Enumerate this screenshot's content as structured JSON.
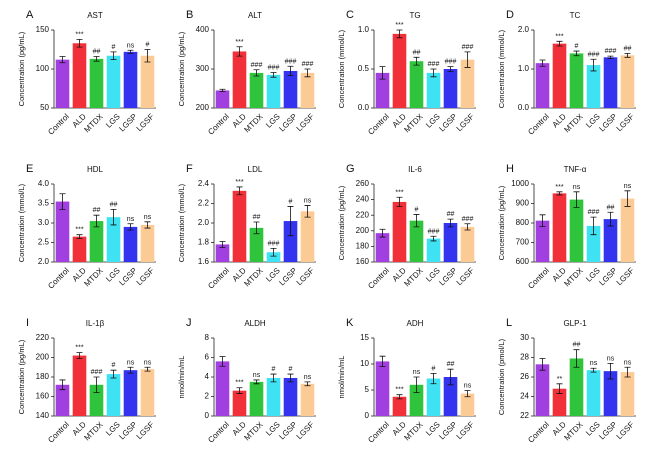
{
  "chart_data": [
    {
      "type": "bar",
      "panel": "A",
      "title": "AST",
      "ylabel": "Concentration (pg/mL)",
      "categories": [
        "Control",
        "ALD",
        "MTDX",
        "LGS",
        "LGSP",
        "LGSF"
      ],
      "colors": [
        "#a23fe0",
        "#f2303a",
        "#2fc43c",
        "#3fe2f2",
        "#3434f0",
        "#fcca94"
      ],
      "values": [
        112,
        133,
        113,
        117,
        122,
        117
      ],
      "errors": [
        4,
        5,
        3,
        5,
        2,
        8
      ],
      "annotations": [
        null,
        "***",
        "##",
        "#",
        "ns",
        "#"
      ],
      "ylim": [
        50,
        150
      ],
      "yticks": [
        50,
        100,
        150
      ]
    },
    {
      "type": "bar",
      "panel": "B",
      "title": "ALT",
      "ylabel": "Concentration (pg/mL)",
      "categories": [
        "Control",
        "ALD",
        "MTDX",
        "LGS",
        "LGSP",
        "LGSF"
      ],
      "colors": [
        "#a23fe0",
        "#f2303a",
        "#2fc43c",
        "#3fe2f2",
        "#3434f0",
        "#fcca94"
      ],
      "values": [
        245,
        345,
        290,
        285,
        295,
        290
      ],
      "errors": [
        3,
        12,
        8,
        6,
        12,
        10
      ],
      "annotations": [
        null,
        "***",
        "###",
        "###",
        "###",
        "###"
      ],
      "ylim": [
        200,
        400
      ],
      "yticks": [
        200,
        300,
        400
      ]
    },
    {
      "type": "bar",
      "panel": "C",
      "title": "TG",
      "ylabel": "Concentration (mmol/L)",
      "categories": [
        "Control",
        "ALD",
        "MTDX",
        "LGS",
        "LGSP",
        "LGSF"
      ],
      "colors": [
        "#a23fe0",
        "#f2303a",
        "#2fc43c",
        "#3fe2f2",
        "#3434f0",
        "#fcca94"
      ],
      "values": [
        0.45,
        0.95,
        0.6,
        0.45,
        0.5,
        0.62
      ],
      "errors": [
        0.08,
        0.05,
        0.05,
        0.05,
        0.03,
        0.1
      ],
      "annotations": [
        null,
        "***",
        "##",
        "###",
        "###",
        "###"
      ],
      "ylim": [
        0,
        1.0
      ],
      "yticks": [
        {
          "value": 0,
          "label": "0.0"
        },
        0.5,
        {
          "value": 1,
          "label": "1.0"
        }
      ]
    },
    {
      "type": "bar",
      "panel": "D",
      "title": "TC",
      "ylabel": "Concentration (mmol/L)",
      "categories": [
        "Control",
        "ALD",
        "MTDX",
        "LGS",
        "LGSP",
        "LGSF"
      ],
      "colors": [
        "#a23fe0",
        "#f2303a",
        "#2fc43c",
        "#3fe2f2",
        "#3434f0",
        "#fcca94"
      ],
      "values": [
        1.15,
        1.65,
        1.4,
        1.1,
        1.3,
        1.35
      ],
      "errors": [
        0.08,
        0.06,
        0.06,
        0.15,
        0.03,
        0.05
      ],
      "annotations": [
        null,
        "***",
        "#",
        "###",
        "###",
        "##"
      ],
      "ylim": [
        0,
        2.0
      ],
      "yticks": [
        {
          "value": 0,
          "label": "0.0"
        },
        {
          "value": 1,
          "label": "1.0"
        },
        {
          "value": 2,
          "label": "2.0"
        }
      ]
    },
    {
      "type": "bar",
      "panel": "E",
      "title": "HDL",
      "ylabel": "Concentration (mmol/L)",
      "categories": [
        "Control",
        "ALD",
        "MTDX",
        "LGS",
        "LGSP",
        "LGSF"
      ],
      "colors": [
        "#a23fe0",
        "#f2303a",
        "#2fc43c",
        "#3fe2f2",
        "#3434f0",
        "#fcca94"
      ],
      "values": [
        3.55,
        2.65,
        3.05,
        3.15,
        2.9,
        2.95
      ],
      "errors": [
        0.2,
        0.05,
        0.15,
        0.2,
        0.08,
        0.08
      ],
      "annotations": [
        null,
        "***",
        "##",
        "##",
        "ns",
        "ns"
      ],
      "ylim": [
        2.0,
        4.0
      ],
      "yticks": [
        {
          "value": 2,
          "label": "2.0"
        },
        2.5,
        {
          "value": 3,
          "label": "3.0"
        },
        3.5,
        {
          "value": 4,
          "label": "4.0"
        }
      ]
    },
    {
      "type": "bar",
      "panel": "F",
      "title": "LDL",
      "ylabel": "Concentration (mmol/L)",
      "categories": [
        "Control",
        "ALD",
        "MTDX",
        "LGS",
        "LGSP",
        "LGSF"
      ],
      "colors": [
        "#a23fe0",
        "#f2303a",
        "#2fc43c",
        "#3fe2f2",
        "#3434f0",
        "#fcca94"
      ],
      "values": [
        1.78,
        2.33,
        1.95,
        1.7,
        2.02,
        2.12
      ],
      "errors": [
        0.03,
        0.04,
        0.06,
        0.04,
        0.15,
        0.06
      ],
      "annotations": [
        null,
        "***",
        "##",
        "###",
        "#",
        "ns"
      ],
      "ylim": [
        1.6,
        2.4
      ],
      "yticks": [
        1.6,
        1.8,
        {
          "value": 2,
          "label": "2.0"
        },
        2.2,
        2.4
      ]
    },
    {
      "type": "bar",
      "panel": "G",
      "title": "IL-6",
      "ylabel": "Concentration (pg/mL)",
      "categories": [
        "Control",
        "ALD",
        "MTDX",
        "LGS",
        "LGSP",
        "LGSF"
      ],
      "colors": [
        "#a23fe0",
        "#f2303a",
        "#2fc43c",
        "#3fe2f2",
        "#3434f0",
        "#fcca94"
      ],
      "values": [
        197,
        237,
        213,
        190,
        210,
        205
      ],
      "errors": [
        5,
        6,
        8,
        3,
        5,
        4
      ],
      "annotations": [
        null,
        "***",
        "#",
        "###",
        "##",
        "###"
      ],
      "ylim": [
        160,
        260
      ],
      "yticks": [
        160,
        180,
        200,
        220,
        240,
        260
      ]
    },
    {
      "type": "bar",
      "panel": "H",
      "title": "TNF-α",
      "ylabel": "Concentration (pg/mL)",
      "categories": [
        "Control",
        "ALD",
        "MTDX",
        "LGS",
        "LGSP",
        "LGSF"
      ],
      "colors": [
        "#a23fe0",
        "#f2303a",
        "#2fc43c",
        "#3fe2f2",
        "#3434f0",
        "#fcca94"
      ],
      "values": [
        812,
        952,
        920,
        785,
        820,
        925
      ],
      "errors": [
        30,
        8,
        40,
        45,
        35,
        40
      ],
      "annotations": [
        null,
        "***",
        "ns",
        "###",
        "##",
        "ns"
      ],
      "ylim": [
        600,
        1000
      ],
      "yticks": [
        600,
        700,
        800,
        900,
        1000
      ]
    },
    {
      "type": "bar",
      "panel": "I",
      "title": "IL-1β",
      "ylabel": "Concentration (pg/mL)",
      "categories": [
        "Control",
        "ALD",
        "MTDX",
        "LGS",
        "LGSP",
        "LGSF"
      ],
      "colors": [
        "#a23fe0",
        "#f2303a",
        "#2fc43c",
        "#3fe2f2",
        "#3434f0",
        "#fcca94"
      ],
      "values": [
        172,
        202,
        172,
        183,
        187,
        188
      ],
      "errors": [
        5,
        3,
        8,
        4,
        3,
        2
      ],
      "annotations": [
        null,
        "***",
        "###",
        "#",
        "ns",
        "ns"
      ],
      "ylim": [
        140,
        220
      ],
      "yticks": [
        140,
        160,
        180,
        200,
        220
      ]
    },
    {
      "type": "bar",
      "panel": "J",
      "title": "ALDH",
      "ylabel": "nmol/min/mL",
      "categories": [
        "Control",
        "ALD",
        "MTDX",
        "LGS",
        "LGSP",
        "LGSF"
      ],
      "colors": [
        "#a23fe0",
        "#f2303a",
        "#2fc43c",
        "#3fe2f2",
        "#3434f0",
        "#fcca94"
      ],
      "values": [
        5.6,
        2.6,
        3.5,
        3.9,
        3.9,
        3.3
      ],
      "errors": [
        0.5,
        0.3,
        0.2,
        0.4,
        0.4,
        0.2
      ],
      "annotations": [
        null,
        "***",
        "ns",
        "#",
        "#",
        "ns"
      ],
      "ylim": [
        0,
        8
      ],
      "yticks": [
        0,
        2,
        4,
        6,
        8
      ]
    },
    {
      "type": "bar",
      "panel": "K",
      "title": "ADH",
      "ylabel": "nmol/min/mL",
      "categories": [
        "Control",
        "ALD",
        "MTDX",
        "LGS",
        "LGSP",
        "LGSF"
      ],
      "colors": [
        "#a23fe0",
        "#f2303a",
        "#2fc43c",
        "#3fe2f2",
        "#3434f0",
        "#fcca94"
      ],
      "values": [
        10.5,
        3.7,
        6.0,
        7.2,
        7.5,
        4.3
      ],
      "errors": [
        1.0,
        0.4,
        1.5,
        1.0,
        1.5,
        0.6
      ],
      "annotations": [
        null,
        "***",
        "ns",
        "#",
        "##",
        "ns"
      ],
      "ylim": [
        0,
        15
      ],
      "yticks": [
        0,
        5,
        10,
        15
      ]
    },
    {
      "type": "bar",
      "panel": "L",
      "title": "GLP-1",
      "ylabel": "Concentration (pmol/L)",
      "categories": [
        "Control",
        "ALD",
        "MTDX",
        "LGS",
        "LGSP",
        "LGSF"
      ],
      "colors": [
        "#a23fe0",
        "#f2303a",
        "#2fc43c",
        "#3fe2f2",
        "#3434f0",
        "#fcca94"
      ],
      "values": [
        27.3,
        24.8,
        27.9,
        26.7,
        26.6,
        26.5
      ],
      "errors": [
        0.6,
        0.5,
        0.9,
        0.2,
        0.8,
        0.5
      ],
      "annotations": [
        null,
        "**",
        "##",
        "ns",
        "ns",
        "ns"
      ],
      "ylim": [
        22,
        30
      ],
      "yticks": [
        22,
        24,
        26,
        28,
        30
      ]
    }
  ]
}
